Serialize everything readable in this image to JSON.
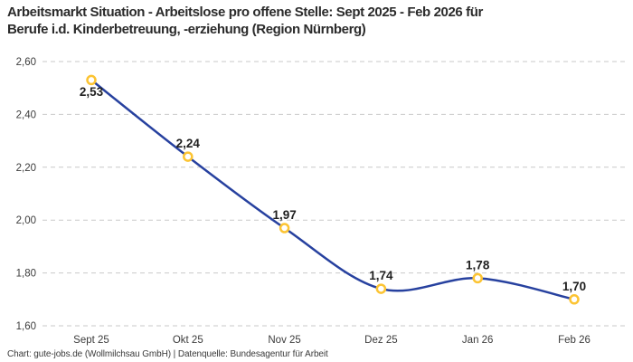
{
  "title": {
    "lines": [
      "Arbeitsmarkt Situation - Arbeitslose pro offene Stelle: Sept 2025 - Feb 2026 für",
      "Berufe i.d. Kinderbetreuung, -erziehung (Region Nürnberg)"
    ]
  },
  "footer": {
    "text": "Chart: gute-jobs.de (Wollmilchsau GmbH) | Datenquelle: Bundesagentur für Arbeit"
  },
  "chart_data": {
    "type": "line",
    "title": "Arbeitsmarkt Situation - Arbeitslose pro offene Stelle: Sept 2025 - Feb 2026 für Berufe i.d. Kinderbetreuung, -erziehung (Region Nürnberg)",
    "categories": [
      "Sept 25",
      "Okt 25",
      "Nov 25",
      "Dez 25",
      "Jan 26",
      "Feb 26"
    ],
    "values": [
      2.53,
      2.24,
      1.97,
      1.74,
      1.78,
      1.7
    ],
    "value_labels": [
      "2,53",
      "2,24",
      "1,97",
      "1,74",
      "1,78",
      "1,70"
    ],
    "label_positions": [
      "below",
      "above",
      "above",
      "above",
      "above",
      "above"
    ],
    "y_ticks": [
      {
        "value": 2.6,
        "label": "2,60"
      },
      {
        "value": 2.4,
        "label": "2,40"
      },
      {
        "value": 2.2,
        "label": "2,20"
      },
      {
        "value": 2.0,
        "label": "2,00"
      },
      {
        "value": 1.8,
        "label": "1,80"
      },
      {
        "value": 1.6,
        "label": "1,60"
      }
    ],
    "ylim": [
      1.6,
      2.6
    ],
    "xlabel": "",
    "ylabel": "",
    "legend": "none",
    "grid": "horizontal-dashed",
    "line_smoothing": "spline",
    "colors": {
      "line": "#27419f",
      "marker_ring": "#fcc433",
      "marker_fill": "#ffffff",
      "grid": "#c9c9c9",
      "tick_text": "#3c3c3c",
      "label_text": "#1f1f1f",
      "background": "#ffffff"
    }
  }
}
